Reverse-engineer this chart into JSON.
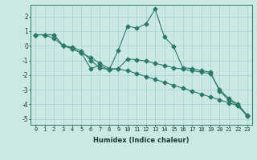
{
  "title": "",
  "xlabel": "Humidex (Indice chaleur)",
  "bg_color": "#cce8e4",
  "grid_color": "#99cccc",
  "line_color": "#2a7a6a",
  "xlim": [
    -0.5,
    23.5
  ],
  "ylim": [
    -5.4,
    2.8
  ],
  "xticks": [
    0,
    1,
    2,
    3,
    4,
    5,
    6,
    7,
    8,
    9,
    10,
    11,
    12,
    13,
    14,
    15,
    16,
    17,
    18,
    19,
    20,
    21,
    22,
    23
  ],
  "yticks": [
    -5,
    -4,
    -3,
    -2,
    -1,
    0,
    1,
    2
  ],
  "line1_x": [
    0,
    1,
    2,
    3,
    4,
    5,
    6,
    7,
    8,
    9,
    10,
    11,
    12,
    13,
    14,
    15,
    16,
    17,
    18,
    19,
    20,
    21,
    22,
    23
  ],
  "line1_y": [
    0.75,
    0.75,
    0.75,
    0.0,
    -0.1,
    -0.35,
    -1.0,
    -1.5,
    -1.65,
    -0.3,
    1.35,
    1.2,
    1.5,
    2.5,
    0.6,
    -0.05,
    -1.5,
    -1.55,
    -1.7,
    -1.8,
    -3.1,
    -3.7,
    -4.1,
    -4.8
  ],
  "line2_x": [
    0,
    1,
    2,
    3,
    4,
    5,
    6,
    7,
    8,
    9,
    10,
    11,
    12,
    13,
    14,
    15,
    16,
    17,
    18,
    19,
    20,
    21,
    22,
    23
  ],
  "line2_y": [
    0.75,
    0.75,
    0.5,
    0.0,
    -0.2,
    -0.5,
    -1.55,
    -1.35,
    -1.65,
    -1.55,
    -0.9,
    -0.95,
    -1.05,
    -1.2,
    -1.35,
    -1.5,
    -1.6,
    -1.7,
    -1.8,
    -1.9,
    -3.0,
    -3.6,
    -4.0,
    -4.75
  ],
  "line3_x": [
    0,
    1,
    2,
    3,
    4,
    5,
    6,
    7,
    8,
    9,
    10,
    11,
    12,
    13,
    14,
    15,
    16,
    17,
    18,
    19,
    20,
    21,
    22,
    23
  ],
  "line3_y": [
    0.75,
    0.75,
    0.75,
    0.0,
    -0.2,
    -0.5,
    -0.8,
    -1.2,
    -1.55,
    -1.6,
    -1.7,
    -1.9,
    -2.1,
    -2.3,
    -2.5,
    -2.7,
    -2.9,
    -3.1,
    -3.3,
    -3.5,
    -3.7,
    -3.9,
    -4.1,
    -4.8
  ],
  "markersize": 2.5,
  "linewidth": 0.8,
  "xlabel_fontsize": 6,
  "tick_fontsize": 5,
  "ytick_fontsize": 5.5
}
